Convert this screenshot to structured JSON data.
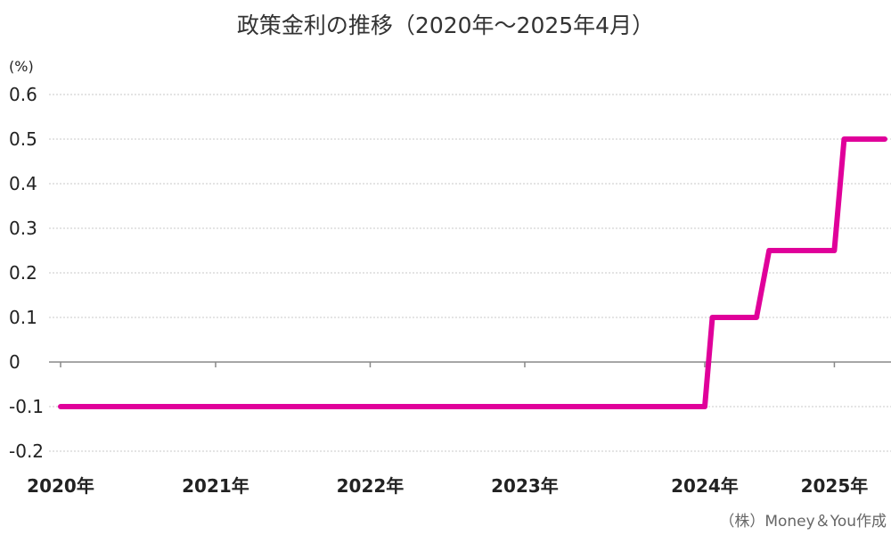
{
  "chart_data": {
    "type": "line",
    "title": "政策金利の推移（2020年～2025年4月）",
    "ylabel": "(%)",
    "ylim": [
      -0.2,
      0.6
    ],
    "yticks": [
      "0.6",
      "0.5",
      "0.4",
      "0.3",
      "0.2",
      "0.1",
      "0",
      "-0.1",
      "-0.2"
    ],
    "ytick_values": [
      0.6,
      0.5,
      0.4,
      0.3,
      0.2,
      0.1,
      0,
      -0.1,
      -0.2
    ],
    "xlim": [
      "2020-01-01",
      "2025-04-30"
    ],
    "xticks": [
      {
        "label": "2020年",
        "date": "2020-01-01"
      },
      {
        "label": "2021年",
        "date": "2021-01-01"
      },
      {
        "label": "2022年",
        "date": "2022-01-01"
      },
      {
        "label": "2023年",
        "date": "2023-01-01"
      },
      {
        "label": "2024年",
        "date": "2024-03-01"
      },
      {
        "label": "2025年",
        "date": "2025-01-01"
      }
    ],
    "grid": true,
    "series": [
      {
        "color": "#e0009a",
        "points": [
          {
            "x": "2020-01-01",
            "y": -0.1
          },
          {
            "x": "2024-03-01",
            "y": -0.1
          },
          {
            "x": "2024-03-19",
            "y": 0.1
          },
          {
            "x": "2024-07-01",
            "y": 0.1
          },
          {
            "x": "2024-07-31",
            "y": 0.25
          },
          {
            "x": "2025-01-01",
            "y": 0.25
          },
          {
            "x": "2025-01-24",
            "y": 0.5
          },
          {
            "x": "2025-04-30",
            "y": 0.5
          }
        ]
      }
    ]
  },
  "credit": "（株）Money＆You作成"
}
